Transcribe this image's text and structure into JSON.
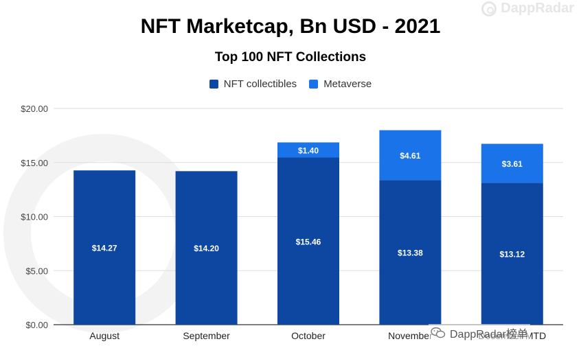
{
  "brand": {
    "name": "DappRadar",
    "icon": "dappradar-logo-icon"
  },
  "watermark": {
    "text": "DappRadar榜单",
    "icon": "wechat-icon"
  },
  "colors": {
    "nft_collectibles": "#0d47a1",
    "metaverse": "#1a73e8",
    "grid": "#dddddd"
  },
  "chart_data": {
    "type": "bar",
    "stacked": true,
    "title": "NFT Marketcap, Bn USD - 2021",
    "subtitle": "Top 100 NFT Collections",
    "categories": [
      "August",
      "September",
      "October",
      "November",
      "December MTD"
    ],
    "series": [
      {
        "name": "NFT collectibles",
        "values": [
          14.27,
          14.2,
          15.46,
          13.38,
          13.12
        ],
        "labels": [
          "$14.27",
          "$14.20",
          "$15.46",
          "$13.38",
          "$13.12"
        ]
      },
      {
        "name": "Metaverse",
        "values": [
          0,
          0,
          1.4,
          4.61,
          3.61
        ],
        "labels": [
          "",
          "",
          "$1.40",
          "$4.61",
          "$3.61"
        ]
      }
    ],
    "ylim": [
      0,
      20
    ],
    "yticks": [
      0,
      5,
      10,
      15,
      20
    ],
    "ytick_labels": [
      "$0.00",
      "$5.00",
      "$10.00",
      "$15.00",
      "$20.00"
    ],
    "legend_position": "top-center",
    "grid": true
  }
}
